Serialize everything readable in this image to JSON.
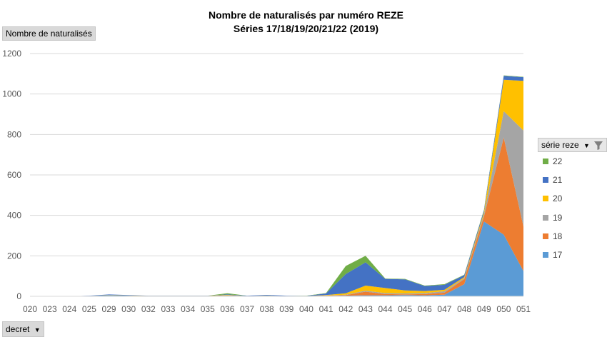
{
  "chart_data": {
    "type": "area",
    "stacked": true,
    "title": "Nombre de naturalisés par numéro REZE",
    "subtitle": "Séries 17/18/19/20/21/22 (2019)",
    "ylabel": "Nombre de naturalisés",
    "xlabel": "decret",
    "legend_title": "série reze",
    "legend_placement": "right",
    "grid": true,
    "ylim": [
      0,
      1200
    ],
    "yticks": [
      0,
      200,
      400,
      600,
      800,
      1000,
      1200
    ],
    "categories": [
      "020",
      "023",
      "024",
      "025",
      "029",
      "030",
      "032",
      "033",
      "034",
      "035",
      "036",
      "037",
      "038",
      "039",
      "040",
      "041",
      "042",
      "043",
      "044",
      "045",
      "046",
      "047",
      "048",
      "049",
      "050",
      "051"
    ],
    "series": [
      {
        "name": "17",
        "color": "#5B9BD5",
        "values": [
          0,
          0,
          0,
          2,
          5,
          3,
          1,
          1,
          1,
          1,
          3,
          1,
          3,
          1,
          1,
          2,
          3,
          5,
          5,
          6,
          5,
          8,
          60,
          370,
          305,
          125
        ]
      },
      {
        "name": "18",
        "color": "#ED7D31",
        "values": [
          0,
          0,
          0,
          0,
          0,
          0,
          0,
          0,
          0,
          0,
          1,
          0,
          0,
          0,
          0,
          1,
          3,
          18,
          6,
          4,
          6,
          10,
          25,
          25,
          480,
          220
        ]
      },
      {
        "name": "19",
        "color": "#A5A5A5",
        "values": [
          0,
          0,
          0,
          0,
          0,
          0,
          0,
          0,
          0,
          0,
          1,
          0,
          0,
          0,
          0,
          1,
          2,
          5,
          5,
          4,
          5,
          7,
          5,
          10,
          130,
          475
        ]
      },
      {
        "name": "20",
        "color": "#FFC000",
        "values": [
          0,
          0,
          0,
          0,
          1,
          1,
          1,
          1,
          1,
          1,
          2,
          0,
          1,
          0,
          0,
          2,
          7,
          25,
          25,
          15,
          10,
          7,
          5,
          10,
          155,
          245
        ]
      },
      {
        "name": "21",
        "color": "#4472C4",
        "values": [
          0,
          0,
          0,
          1,
          3,
          2,
          1,
          1,
          1,
          1,
          3,
          2,
          3,
          2,
          1,
          8,
          95,
          115,
          45,
          55,
          25,
          25,
          10,
          10,
          20,
          18
        ]
      },
      {
        "name": "22",
        "color": "#70AD47",
        "values": [
          0,
          0,
          0,
          0,
          0,
          0,
          0,
          0,
          0,
          0,
          5,
          0,
          0,
          0,
          1,
          2,
          40,
          32,
          2,
          2,
          2,
          3,
          2,
          3,
          2,
          2
        ]
      }
    ]
  }
}
